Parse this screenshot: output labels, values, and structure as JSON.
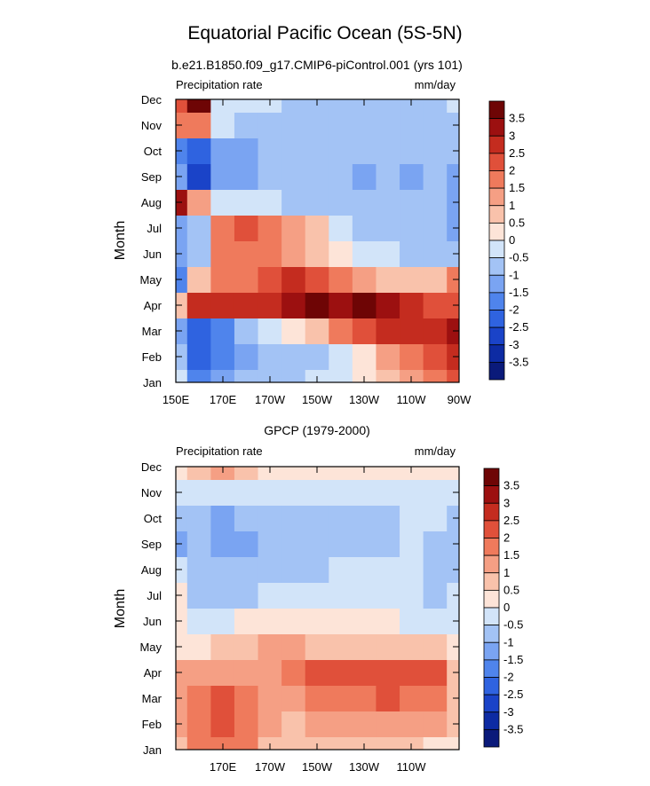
{
  "figure": {
    "title": "Equatorial Pacific Ocean (5S-5N)"
  },
  "chart_data": [
    {
      "type": "heatmap",
      "title": "b.e21.B1850.f09_g17.CMIP6-piControl.001 (yrs 101)",
      "left_label": "Precipitation rate",
      "right_label": "mm/day",
      "ylabel": "Month",
      "xlabel": "",
      "x_ticks": [
        "150E",
        "170E",
        "170W",
        "150W",
        "130W",
        "110W",
        "90W"
      ],
      "y_ticks": [
        "Jan",
        "Feb",
        "Mar",
        "Apr",
        "May",
        "Jun",
        "Jul",
        "Aug",
        "Sep",
        "Oct",
        "Nov",
        "Dec"
      ],
      "x": [
        150,
        160,
        170,
        180,
        190,
        200,
        210,
        220,
        230,
        240,
        250,
        260,
        270
      ],
      "z": [
        [
          -0.5,
          -2.0,
          -1.5,
          -1.0,
          -1.0,
          -1.0,
          -0.5,
          -0.5,
          0.0,
          0.5,
          1.0,
          1.5,
          2.0
        ],
        [
          -1.0,
          -2.5,
          -2.0,
          -1.5,
          -1.0,
          -1.0,
          -1.0,
          -0.5,
          0.0,
          1.0,
          1.5,
          2.0,
          2.5
        ],
        [
          -1.5,
          -2.5,
          -2.0,
          -1.0,
          -0.5,
          0.0,
          0.5,
          1.5,
          2.0,
          2.5,
          2.5,
          2.5,
          3.0
        ],
        [
          0.5,
          2.5,
          2.5,
          2.5,
          2.5,
          3.0,
          3.5,
          3.0,
          3.5,
          3.0,
          2.5,
          2.0,
          2.0
        ],
        [
          -2.0,
          0.5,
          1.5,
          1.5,
          2.0,
          2.5,
          2.0,
          1.5,
          1.0,
          0.5,
          0.5,
          0.5,
          1.5
        ],
        [
          -1.5,
          -1.0,
          1.5,
          1.5,
          1.5,
          1.0,
          0.5,
          0.0,
          -0.5,
          -0.5,
          -1.0,
          -1.0,
          -1.0
        ],
        [
          -1.5,
          -1.0,
          1.5,
          2.0,
          1.5,
          1.0,
          0.5,
          -0.5,
          -1.0,
          -1.0,
          -1.0,
          -1.0,
          -1.5
        ],
        [
          3.0,
          1.0,
          -0.5,
          -0.5,
          -0.5,
          -1.0,
          -1.0,
          -1.0,
          -1.0,
          -1.0,
          -1.0,
          -1.0,
          -1.5
        ],
        [
          -1.5,
          -3.0,
          -1.5,
          -1.5,
          -1.0,
          -1.0,
          -1.0,
          -1.0,
          -1.5,
          -1.0,
          -1.5,
          -1.0,
          -1.5
        ],
        [
          -2.0,
          -2.5,
          -1.5,
          -1.5,
          -1.0,
          -1.0,
          -1.0,
          -1.0,
          -1.0,
          -1.0,
          -1.0,
          -1.0,
          -1.0
        ],
        [
          1.5,
          1.5,
          -0.5,
          -1.0,
          -1.0,
          -1.0,
          -1.0,
          -1.0,
          -1.0,
          -1.0,
          -1.0,
          -1.0,
          -1.0
        ],
        [
          2.0,
          3.5,
          -0.5,
          -0.5,
          -0.5,
          -1.0,
          -1.0,
          -1.0,
          -1.0,
          -1.0,
          -1.0,
          -1.0,
          -0.5
        ]
      ],
      "levels": [
        -3.5,
        -3,
        -2.5,
        -2,
        -1.5,
        -1,
        -0.5,
        0,
        0.5,
        1,
        1.5,
        2,
        2.5,
        3,
        3.5
      ],
      "colorbar_labels": [
        "3.5",
        "3",
        "2.5",
        "2",
        "1.5",
        "1",
        "0.5",
        "0",
        "-0.5",
        "-1",
        "-1.5",
        "-2",
        "-2.5",
        "-3",
        "-3.5"
      ],
      "colors": [
        "#0a1a7a",
        "#0d2ba3",
        "#1a43c8",
        "#2f63e0",
        "#4f84ec",
        "#7aa4f2",
        "#a3c3f5",
        "#d2e4f9",
        "#fde4d8",
        "#f9c2ab",
        "#f59f84",
        "#ef7a5c",
        "#e0503a",
        "#c42c1f",
        "#9c1010",
        "#6e0505"
      ]
    },
    {
      "type": "heatmap",
      "title": "GPCP (1979-2000)",
      "left_label": "Precipitation rate",
      "right_label": "mm/day",
      "ylabel": "Month",
      "xlabel": "",
      "x_ticks": [
        "170E",
        "170W",
        "150W",
        "130W",
        "110W"
      ],
      "y_ticks": [
        "Jan",
        "Feb",
        "Mar",
        "Apr",
        "May",
        "Jun",
        "Jul",
        "Aug",
        "Sep",
        "Oct",
        "Nov",
        "Dec"
      ],
      "x": [
        150,
        160,
        170,
        180,
        190,
        200,
        210,
        220,
        230,
        240,
        250,
        260,
        270
      ],
      "z": [
        [
          0.5,
          1.5,
          1.5,
          1.5,
          0.5,
          0.5,
          0.5,
          0.5,
          0.5,
          0.5,
          0.5,
          0.0,
          0.0
        ],
        [
          1.0,
          1.5,
          2.0,
          1.5,
          1.0,
          0.5,
          1.0,
          1.0,
          1.0,
          1.0,
          1.0,
          1.0,
          0.5
        ],
        [
          1.0,
          1.5,
          2.0,
          1.5,
          1.0,
          1.0,
          1.5,
          1.5,
          1.5,
          2.0,
          1.5,
          1.5,
          0.5
        ],
        [
          1.0,
          1.0,
          1.0,
          1.0,
          1.0,
          1.5,
          2.0,
          2.0,
          2.0,
          2.0,
          2.0,
          2.0,
          0.5
        ],
        [
          0.0,
          0.0,
          0.5,
          0.5,
          1.0,
          1.0,
          0.5,
          0.5,
          0.5,
          0.5,
          0.5,
          0.5,
          0.0
        ],
        [
          0.0,
          -0.5,
          -0.5,
          0.0,
          0.0,
          0.0,
          0.0,
          0.0,
          0.0,
          0.0,
          -0.5,
          -0.5,
          -0.5
        ],
        [
          0.0,
          -1.0,
          -1.0,
          -1.0,
          -0.5,
          -0.5,
          -0.5,
          -0.5,
          -0.5,
          -0.5,
          -0.5,
          -1.0,
          -0.5
        ],
        [
          -0.5,
          -1.0,
          -1.0,
          -1.0,
          -1.0,
          -1.0,
          -1.0,
          -0.5,
          -0.5,
          -0.5,
          -0.5,
          -1.0,
          -1.0
        ],
        [
          -1.5,
          -1.0,
          -1.5,
          -1.5,
          -1.0,
          -1.0,
          -1.0,
          -1.0,
          -1.0,
          -1.0,
          -0.5,
          -1.0,
          -1.0
        ],
        [
          -1.0,
          -1.0,
          -1.5,
          -1.0,
          -1.0,
          -1.0,
          -1.0,
          -1.0,
          -1.0,
          -1.0,
          -0.5,
          -0.5,
          -1.0
        ],
        [
          -0.5,
          -0.5,
          -0.5,
          -0.5,
          -0.5,
          -0.5,
          -0.5,
          -0.5,
          -0.5,
          -0.5,
          -0.5,
          -0.5,
          -0.5
        ],
        [
          0.0,
          0.5,
          1.0,
          0.5,
          0.0,
          0.0,
          0.0,
          0.0,
          0.0,
          0.0,
          0.0,
          0.0,
          0.0
        ]
      ],
      "levels": [
        -3.5,
        -3,
        -2.5,
        -2,
        -1.5,
        -1,
        -0.5,
        0,
        0.5,
        1,
        1.5,
        2,
        2.5,
        3,
        3.5
      ],
      "colorbar_labels": [
        "3.5",
        "3",
        "2.5",
        "2",
        "1.5",
        "1",
        "0.5",
        "0",
        "-0.5",
        "-1",
        "-1.5",
        "-2",
        "-2.5",
        "-3",
        "-3.5"
      ],
      "colors": [
        "#0a1a7a",
        "#0d2ba3",
        "#1a43c8",
        "#2f63e0",
        "#4f84ec",
        "#7aa4f2",
        "#a3c3f5",
        "#d2e4f9",
        "#fde4d8",
        "#f9c2ab",
        "#f59f84",
        "#ef7a5c",
        "#e0503a",
        "#c42c1f",
        "#9c1010",
        "#6e0505"
      ]
    }
  ]
}
